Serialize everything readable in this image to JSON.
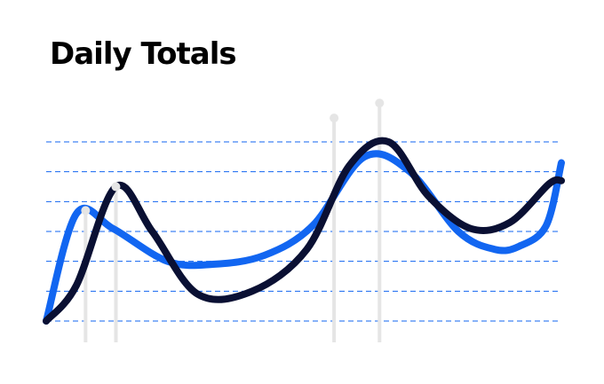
{
  "chart_data": {
    "type": "line",
    "title": "Daily Totals",
    "xlabel": "",
    "ylabel": "",
    "grid": true,
    "grid_style": "dashed",
    "legend": "none",
    "x": [
      0,
      1,
      2,
      3,
      4,
      5,
      6,
      7,
      8,
      9,
      10,
      11,
      12,
      13,
      14,
      15,
      16,
      17
    ],
    "ylim": [
      0,
      6
    ],
    "gridlines": [
      0,
      1,
      2,
      3,
      4,
      5,
      6
    ],
    "series": [
      {
        "color": "#1266f1",
        "values": [
          0.0,
          3.6,
          3.1,
          2.0,
          1.9,
          2.2,
          3.2,
          5.5,
          5.0,
          3.0,
          2.4,
          2.5,
          3.2,
          5.3
        ],
        "x": [
          0.0,
          1.0,
          2.2,
          4.0,
          5.5,
          7.2,
          8.8,
          10.5,
          12.0,
          13.6,
          14.8,
          15.6,
          16.5,
          17.0
        ]
      },
      {
        "color": "#0a1033",
        "values": [
          0.0,
          1.2,
          4.5,
          3.0,
          0.9,
          1.0,
          2.4,
          5.2,
          6.0,
          4.2,
          3.1,
          3.3,
          4.6,
          4.7
        ],
        "x": [
          0.0,
          1.0,
          2.3,
          3.5,
          5.0,
          6.8,
          8.6,
          10.0,
          11.3,
          12.6,
          14.0,
          15.3,
          16.6,
          17.0
        ]
      }
    ],
    "highlights": [
      {
        "series": 0,
        "x": 1.3,
        "y": 3.7
      },
      {
        "series": 1,
        "x": 2.3,
        "y": 4.5
      },
      {
        "series": 0,
        "x": 9.5,
        "y": 6.8
      },
      {
        "series": 1,
        "x": 11.0,
        "y": 7.3
      }
    ],
    "colors": {
      "title": "#000000",
      "grid": "#1266f1",
      "drop_line": "#e5e5e5",
      "marker": "#e5e5e5"
    }
  }
}
